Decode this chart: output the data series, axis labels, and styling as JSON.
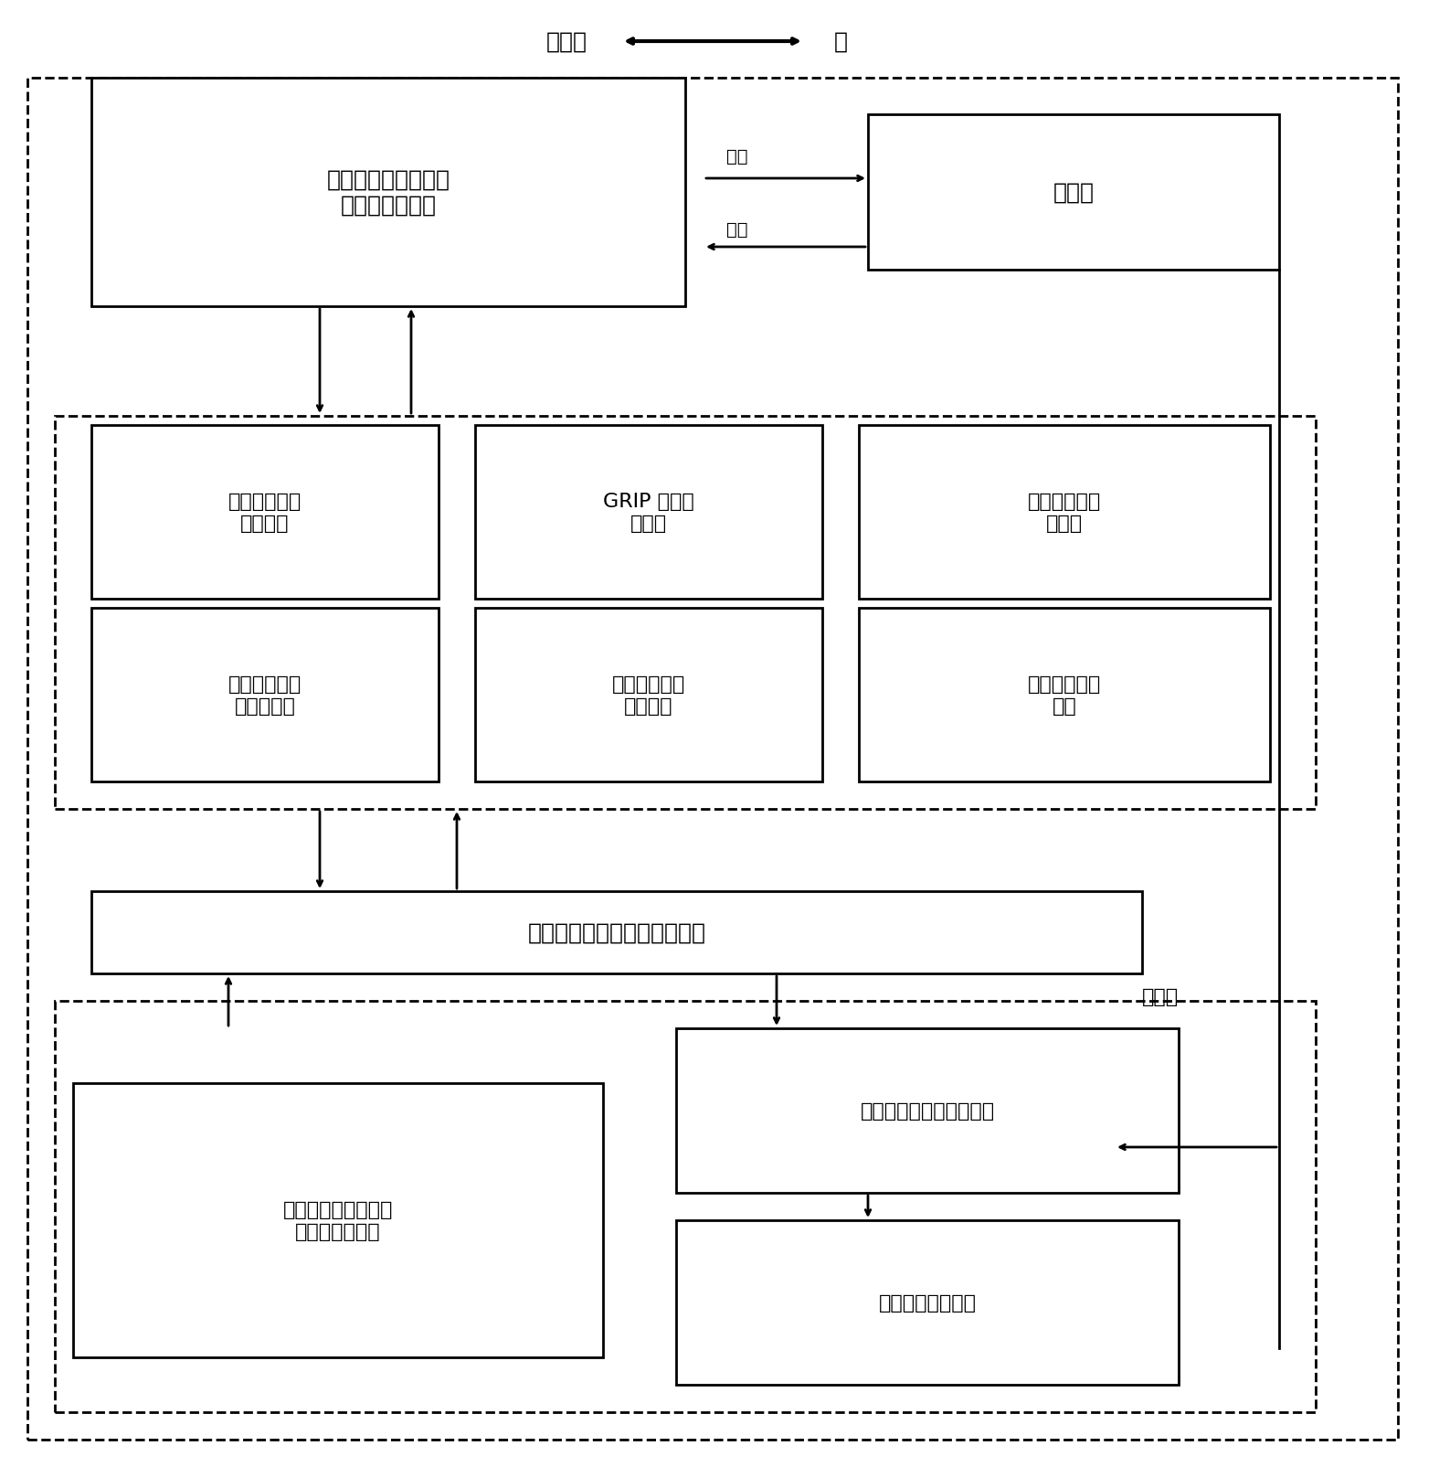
{
  "title_left": "计算机",
  "title_right": "人",
  "bg_color": "#ffffff",
  "box1_text": "快速路网虚拟出行情\n景的计算机界面",
  "box2_text": "驾驶员",
  "stimulus_text": "刺激",
  "response_text": "响应",
  "box3_text": "基本出行信息\n生成模块",
  "box4_text": "GRIP 信息生\n成模块",
  "box5_text": "驾驶员驾车任\n务模块",
  "box6_text": "交通流运行状\n态生成模块",
  "box7_text": "车辆方位信息\n生成模块",
  "box8_text": "辅助信息生成\n模块",
  "box9_text": "快速路网宏观交通流仿真模型",
  "box10_text": "虚拟出行情境的数据\n（由用户定义）",
  "box11_text": "驾驶员信息响应行为数据",
  "box12_text": "其他出行相关信息",
  "db_label": "数据库",
  "font_size_large": 18,
  "font_size_medium": 16,
  "font_size_small": 14
}
